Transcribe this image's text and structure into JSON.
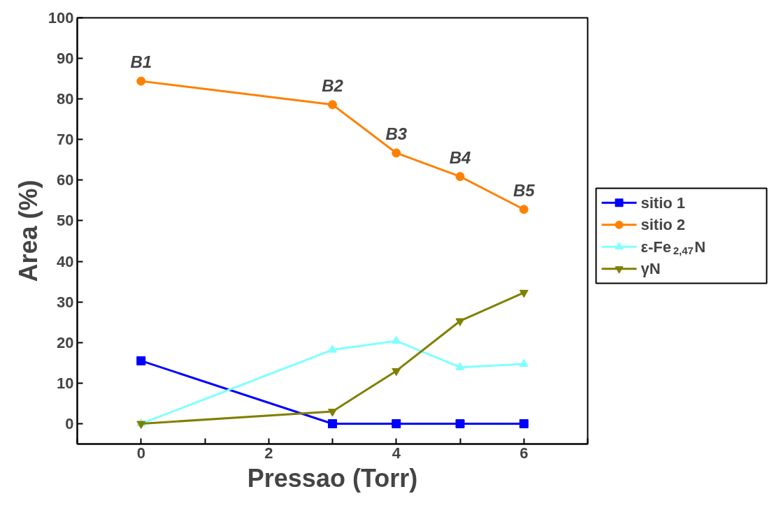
{
  "chart_data": {
    "type": "line",
    "xlabel": "Pressao (Torr)",
    "ylabel": "Area (%)",
    "x": [
      0,
      3,
      4,
      5,
      6
    ],
    "xlim": [
      -1,
      7
    ],
    "xticks": [
      {
        "value": -1,
        "label": null
      },
      0,
      {
        "value": 1,
        "label": null
      },
      2,
      {
        "value": 3,
        "label": null
      },
      4,
      {
        "value": 5,
        "label": null
      },
      6,
      {
        "value": 7,
        "label": null
      }
    ],
    "ylim": [
      -5,
      100
    ],
    "yticks": [
      0,
      10,
      20,
      30,
      40,
      50,
      60,
      70,
      80,
      90,
      100
    ],
    "grid": false,
    "legend": "right",
    "line_style": "solid",
    "series": [
      {
        "name": "sitio 1",
        "color": "#0000ff",
        "marker": "square",
        "values": [
          15.5,
          0,
          0,
          0,
          0
        ]
      },
      {
        "name": "sitio 2",
        "color": "#ff8000",
        "marker": "circle",
        "values": [
          84.4,
          78.6,
          66.7,
          60.9,
          52.8
        ]
      },
      {
        "name": "ε-Fe$_{2,47}$N",
        "color": "#80ffff",
        "marker": "triangle",
        "values": [
          0,
          18.2,
          20.4,
          13.9,
          14.7
        ]
      },
      {
        "name": "γN",
        "color": "#808000",
        "marker": "triangle",
        "values": [
          0,
          3.0,
          13.0,
          25.3,
          32.3
        ]
      }
    ],
    "annotations": [
      "B1",
      "B2",
      "B3",
      "B4",
      "B5"
    ]
  }
}
